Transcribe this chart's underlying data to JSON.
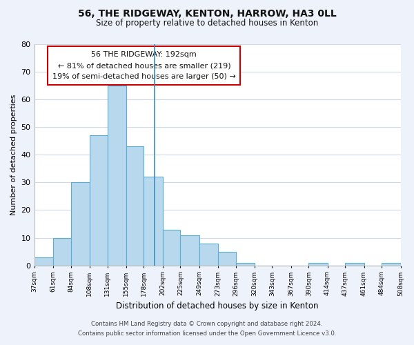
{
  "title": "56, THE RIDGEWAY, KENTON, HARROW, HA3 0LL",
  "subtitle": "Size of property relative to detached houses in Kenton",
  "xlabel": "Distribution of detached houses by size in Kenton",
  "ylabel": "Number of detached properties",
  "annotation_line1": "56 THE RIDGEWAY: 192sqm",
  "annotation_line2": "← 81% of detached houses are smaller (219)",
  "annotation_line3": "19% of semi-detached houses are larger (50) →",
  "bar_edges": [
    37,
    61,
    84,
    108,
    131,
    155,
    178,
    202,
    225,
    249,
    273,
    296,
    320,
    343,
    367,
    390,
    414,
    437,
    461,
    484,
    508
  ],
  "bar_heights": [
    3,
    10,
    30,
    47,
    65,
    43,
    32,
    13,
    11,
    8,
    5,
    1,
    0,
    0,
    0,
    1,
    0,
    1,
    0,
    1
  ],
  "bar_color": "#b8d8ed",
  "bar_edge_color": "#5badd4",
  "reference_line_x": 192,
  "ylim": [
    0,
    80
  ],
  "yticks": [
    0,
    10,
    20,
    30,
    40,
    50,
    60,
    70,
    80
  ],
  "xtick_labels": [
    "37sqm",
    "61sqm",
    "84sqm",
    "108sqm",
    "131sqm",
    "155sqm",
    "178sqm",
    "202sqm",
    "225sqm",
    "249sqm",
    "273sqm",
    "296sqm",
    "320sqm",
    "343sqm",
    "367sqm",
    "390sqm",
    "414sqm",
    "437sqm",
    "461sqm",
    "484sqm",
    "508sqm"
  ],
  "footnote1": "Contains HM Land Registry data © Crown copyright and database right 2024.",
  "footnote2": "Contains public sector information licensed under the Open Government Licence v3.0.",
  "bg_color": "#eef2fb",
  "plot_bg_color": "#ffffff",
  "annotation_box_color": "#ffffff",
  "annotation_box_edge": "#cc0000",
  "grid_color": "#d0d8e8"
}
